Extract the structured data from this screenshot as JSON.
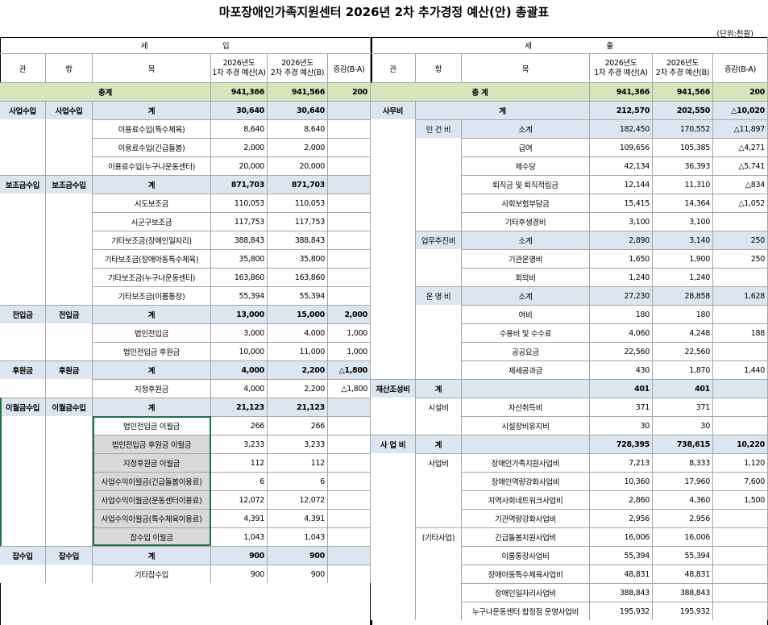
{
  "title": "마포장애인가족지원센터 2026년 2차 추가경정 예산(안) 총괄표",
  "unit": "(단위:천원)",
  "revenue": {
    "heading": "세 입",
    "columns": [
      "관",
      "항",
      "목",
      [
        "2026년도",
        "1차 추경 예산(A)"
      ],
      [
        "2026년도",
        "2차 추경 예산(B)"
      ],
      "증감(B-A)"
    ],
    "rows": [
      [
        "총계",
        null,
        null,
        "941,366",
        "941,566",
        "200"
      ],
      [
        "사업수입",
        "사업수입",
        "계",
        "30,640",
        "30,640",
        null
      ],
      [
        null,
        null,
        "이용료수입(특수체육)",
        "8,640",
        "8,640",
        null
      ],
      [
        null,
        null,
        "이용료수입(긴급돌봄)",
        "2,000",
        "2,000",
        null
      ],
      [
        null,
        null,
        "이용료수입(누구나운동센터)",
        "20,000",
        "20,000",
        null
      ],
      [
        "보조금수입",
        "보조금수입",
        "계",
        "871,703",
        "871,703",
        null
      ],
      [
        null,
        null,
        "시도보조금",
        "110,053",
        "110,053",
        null
      ],
      [
        null,
        null,
        "시군구보조금",
        "117,753",
        "117,753",
        null
      ],
      [
        null,
        null,
        "기타보조금(장애인일자리)",
        "388,843",
        "388,843",
        null
      ],
      [
        null,
        null,
        "기타보조금(장애아동특수체육)",
        "35,800",
        "35,800",
        null
      ],
      [
        null,
        null,
        "기타보조금(누구나운동센터)",
        "163,860",
        "163,860",
        null
      ],
      [
        null,
        null,
        "기타보조금(이룸통장)",
        "55,394",
        "55,394",
        null
      ],
      [
        "전입금",
        "전입금",
        "계",
        "13,000",
        "15,000",
        "2,000"
      ],
      [
        null,
        null,
        "법인전입금",
        "3,000",
        "4,000",
        "1,000"
      ],
      [
        null,
        null,
        "법인전입금 후원금",
        "10,000",
        "11,000",
        "1,000"
      ],
      [
        "후원금",
        "후원금",
        "계",
        "4,000",
        "2,200",
        "△1,800"
      ],
      [
        null,
        null,
        "지정후원금",
        "4,000",
        "2,200",
        "△1,800"
      ],
      [
        "이월금수입",
        "이월금수입",
        "계",
        "21,123",
        "21,123",
        null
      ],
      [
        null,
        null,
        "법인전입금 이월금",
        "266",
        "266",
        null
      ],
      [
        null,
        null,
        "법인전입금 후원금 이월금",
        "3,233",
        "3,233",
        null
      ],
      [
        null,
        null,
        "지정후원금 이월금",
        "112",
        "112",
        null
      ],
      [
        null,
        null,
        "사업수익이월금(긴급돌봄이용료)",
        "6",
        "6",
        null
      ],
      [
        null,
        null,
        "사업수익이월금(운동센터이용료)",
        "12,072",
        "12,072",
        null
      ],
      [
        null,
        null,
        "사업수익이월금(특수체육이용료)",
        "4,391",
        "4,391",
        null
      ],
      [
        null,
        null,
        "잡수입 이월금",
        "1,043",
        "1,043",
        null
      ],
      [
        "잡수입",
        "잡수입",
        "계",
        "900",
        "900",
        null
      ],
      [
        null,
        null,
        "기타잡수입",
        "900",
        "900",
        null
      ]
    ]
  },
  "expenditure": {
    "heading": "세 출",
    "columns": [
      "관",
      "항",
      "목",
      [
        "2026년도",
        "1차 추경 예산(A)"
      ],
      [
        "2026년도",
        "2차 추경 예산(B)"
      ],
      "증감(B-A)"
    ],
    "rows": [
      [
        "총 계",
        null,
        null,
        "941,366",
        "941,566",
        "200"
      ],
      [
        "사무비",
        null,
        "계",
        "212,570",
        "202,550",
        "△10,020"
      ],
      [
        null,
        "인 건 비",
        "소계",
        "182,450",
        "170,552",
        "△11,897"
      ],
      [
        null,
        null,
        "급여",
        "109,656",
        "105,385",
        "△4,271"
      ],
      [
        null,
        null,
        "제수당",
        "42,134",
        "36,393",
        "△5,741"
      ],
      [
        null,
        null,
        "퇴직금 및 퇴직적립금",
        "12,144",
        "11,310",
        "△834"
      ],
      [
        null,
        null,
        "사회보험부담금",
        "15,415",
        "14,364",
        "△1,052"
      ],
      [
        null,
        null,
        "기타후생경비",
        "3,100",
        "3,100",
        null
      ],
      [
        null,
        "업무추진비",
        "소계",
        "2,890",
        "3,140",
        "250"
      ],
      [
        null,
        null,
        "기관운영비",
        "1,650",
        "1,900",
        "250"
      ],
      [
        null,
        null,
        "회의비",
        "1,240",
        "1,240",
        null
      ],
      [
        null,
        "운 영 비",
        "소계",
        "27,230",
        "28,858",
        "1,628"
      ],
      [
        null,
        null,
        "여비",
        "180",
        "180",
        null
      ],
      [
        null,
        null,
        "수용비 및 수수료",
        "4,060",
        "4,248",
        "188"
      ],
      [
        null,
        null,
        "공공요금",
        "22,560",
        "22,560",
        null
      ],
      [
        null,
        null,
        "제세공과금",
        "430",
        "1,870",
        "1,440"
      ],
      [
        "재산조성비",
        "계",
        null,
        "401",
        "401",
        null
      ],
      [
        null,
        "시설비",
        "자산취득비",
        "371",
        "371",
        null
      ],
      [
        null,
        null,
        "시설장비유지비",
        "30",
        "30",
        null
      ],
      [
        "사 업 비",
        "계",
        null,
        "728,395",
        "738,615",
        "10,220"
      ],
      [
        null,
        "사업비",
        "장애인가족지원사업비",
        "7,213",
        "8,333",
        "1,120"
      ],
      [
        null,
        null,
        "장애인역량강화사업비",
        "10,360",
        "17,960",
        "7,600"
      ],
      [
        null,
        null,
        "지역사회네트워크사업비",
        "2,860",
        "4,360",
        "1,500"
      ],
      [
        null,
        null,
        "기관역량강화사업비",
        "2,956",
        "2,956",
        null
      ],
      [
        null,
        "(기타사업)",
        "긴급돌봄지원사업비",
        "16,006",
        "16,006",
        null
      ],
      [
        null,
        null,
        "이룸통장사업비",
        "55,394",
        "55,394",
        null
      ],
      [
        null,
        null,
        "장애아동특수체육사업비",
        "48,831",
        "48,831",
        null
      ],
      [
        null,
        null,
        "장애인일자리사업비",
        "388,843",
        "388,843",
        null
      ],
      [
        null,
        null,
        "누구나운동센터 합정점 운영사업비",
        "195,932",
        "195,932",
        null
      ]
    ]
  }
}
